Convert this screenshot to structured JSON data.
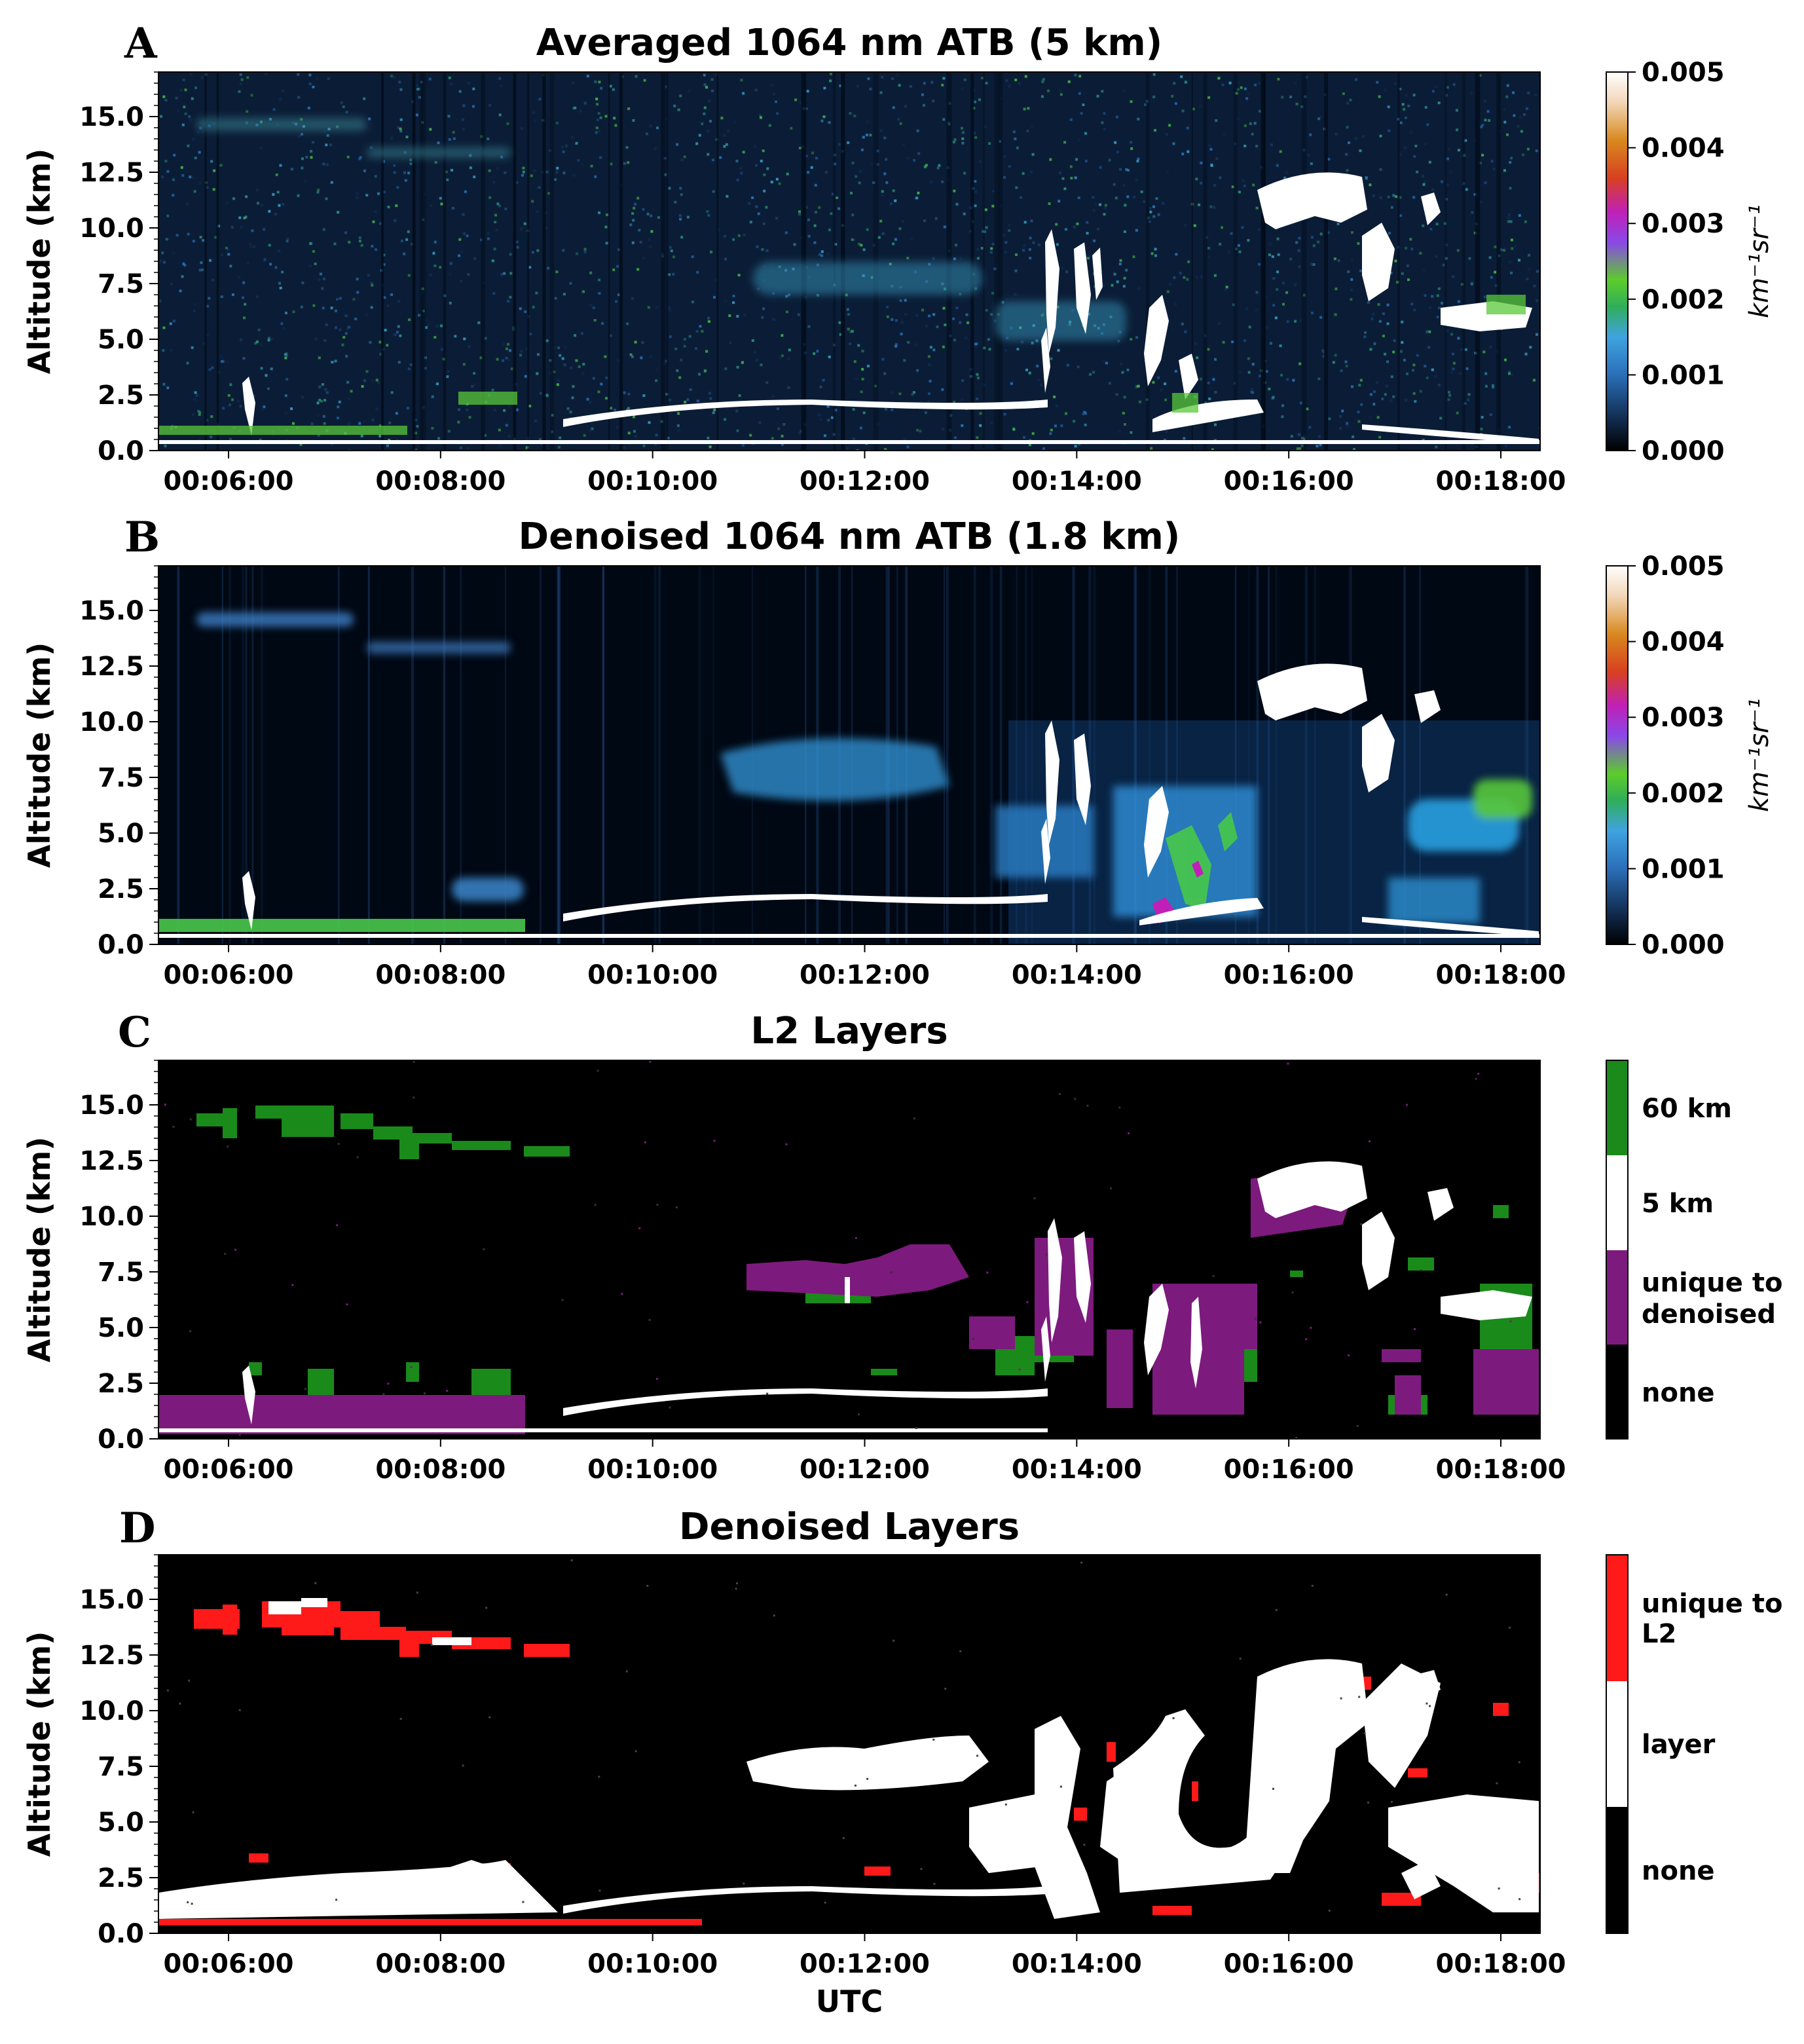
{
  "chart_data": [
    {
      "type": "heatmap",
      "panel_label": "A",
      "title": "Averaged 1064 nm ATB (5 km)",
      "ylabel": "Altitude (km)",
      "xlabel": "",
      "ylim": [
        0,
        17
      ],
      "yticks": [
        "0.0",
        "2.5",
        "5.0",
        "7.5",
        "10.0",
        "12.5",
        "15.0"
      ],
      "xticks": [
        "00:06:00",
        "00:08:00",
        "00:10:00",
        "00:12:00",
        "00:14:00",
        "00:16:00",
        "00:18:00"
      ],
      "colorbar": {
        "label": "km⁻¹sr⁻¹",
        "ticks": [
          "0.000",
          "0.001",
          "0.002",
          "0.003",
          "0.004",
          "0.005"
        ]
      }
    },
    {
      "type": "heatmap",
      "panel_label": "B",
      "title": "Denoised 1064 nm ATB (1.8 km)",
      "ylabel": "Altitude (km)",
      "xlabel": "",
      "ylim": [
        0,
        17
      ],
      "yticks": [
        "0.0",
        "2.5",
        "5.0",
        "7.5",
        "10.0",
        "12.5",
        "15.0"
      ],
      "xticks": [
        "00:06:00",
        "00:08:00",
        "00:10:00",
        "00:12:00",
        "00:14:00",
        "00:16:00",
        "00:18:00"
      ],
      "colorbar": {
        "label": "km⁻¹sr⁻¹",
        "ticks": [
          "0.000",
          "0.001",
          "0.002",
          "0.003",
          "0.004",
          "0.005"
        ]
      }
    },
    {
      "type": "heatmap",
      "panel_label": "C",
      "title": "L2 Layers",
      "ylabel": "Altitude (km)",
      "xlabel": "",
      "ylim": [
        0,
        17
      ],
      "yticks": [
        "0.0",
        "2.5",
        "5.0",
        "7.5",
        "10.0",
        "12.5",
        "15.0"
      ],
      "xticks": [
        "00:06:00",
        "00:08:00",
        "00:10:00",
        "00:12:00",
        "00:14:00",
        "00:16:00",
        "00:18:00"
      ],
      "categories": [
        {
          "label": "60 km",
          "color": "#1a8a1a"
        },
        {
          "label": "5 km",
          "color": "#ffffff"
        },
        {
          "label": "unique to denoised",
          "color": "#7d1a7d"
        },
        {
          "label": "none",
          "color": "#000000"
        }
      ]
    },
    {
      "type": "heatmap",
      "panel_label": "D",
      "title": "Denoised Layers",
      "ylabel": "Altitude (km)",
      "xlabel": "UTC",
      "ylim": [
        0,
        17
      ],
      "yticks": [
        "0.0",
        "2.5",
        "5.0",
        "7.5",
        "10.0",
        "12.5",
        "15.0"
      ],
      "xticks": [
        "00:06:00",
        "00:08:00",
        "00:10:00",
        "00:12:00",
        "00:14:00",
        "00:16:00",
        "00:18:00"
      ],
      "categories": [
        {
          "label": "unique to L2",
          "color": "#ff1a1a"
        },
        {
          "label": "layer",
          "color": "#ffffff"
        },
        {
          "label": "none",
          "color": "#000000"
        }
      ]
    }
  ],
  "colors": {
    "atb_colormap": [
      "#000000",
      "#0d1f3a",
      "#1a4f8a",
      "#3f9bdc",
      "#48c24a",
      "#58d23a",
      "#8a2be2",
      "#c81eb4",
      "#d2691e",
      "#ffffff"
    ]
  }
}
